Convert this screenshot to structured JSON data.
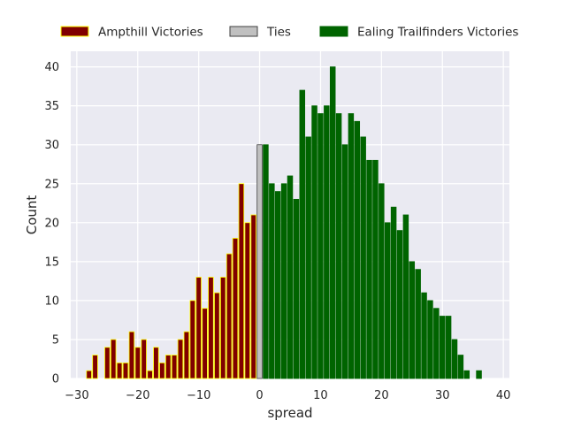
{
  "chart_data": {
    "type": "bar",
    "xlabel": "spread",
    "ylabel": "Count",
    "xlim": [
      -31,
      41
    ],
    "ylim": [
      0,
      42
    ],
    "xticks": [
      -30,
      -20,
      -10,
      0,
      10,
      20,
      30,
      40
    ],
    "yticks": [
      0,
      5,
      10,
      15,
      20,
      25,
      30,
      35,
      40
    ],
    "grid": true,
    "legend_position": "top",
    "bin_width": 1,
    "series": [
      {
        "name": "Ampthill Victories",
        "color": "#800000",
        "edge_color": "#ffff00",
        "x": [
          -28,
          -27,
          -25,
          -24,
          -23,
          -22,
          -21,
          -20,
          -19,
          -18,
          -17,
          -16,
          -15,
          -14,
          -13,
          -12,
          -11,
          -10,
          -9,
          -8,
          -7,
          -6,
          -5,
          -4,
          -3,
          -2,
          -1
        ],
        "values": [
          1,
          3,
          4,
          5,
          2,
          2,
          6,
          4,
          5,
          1,
          4,
          2,
          3,
          3,
          5,
          6,
          10,
          13,
          9,
          13,
          11,
          13,
          16,
          18,
          25,
          20,
          21
        ]
      },
      {
        "name": "Ties",
        "color": "#c0c0c0",
        "edge_color": "#3f3f3f",
        "x": [
          0
        ],
        "values": [
          30
        ]
      },
      {
        "name": "Ealing Trailfinders Victories",
        "color": "#006400",
        "edge_color": "#006400",
        "x": [
          1,
          2,
          3,
          4,
          5,
          6,
          7,
          8,
          9,
          10,
          11,
          12,
          13,
          14,
          15,
          16,
          17,
          18,
          19,
          20,
          21,
          22,
          23,
          24,
          25,
          26,
          27,
          28,
          29,
          30,
          31,
          32,
          33,
          34,
          36
        ],
        "values": [
          30,
          25,
          24,
          25,
          26,
          23,
          37,
          31,
          35,
          34,
          35,
          40,
          34,
          30,
          34,
          33,
          31,
          28,
          28,
          25,
          20,
          22,
          19,
          21,
          15,
          14,
          11,
          10,
          9,
          8,
          8,
          5,
          3,
          1,
          1
        ]
      }
    ]
  }
}
